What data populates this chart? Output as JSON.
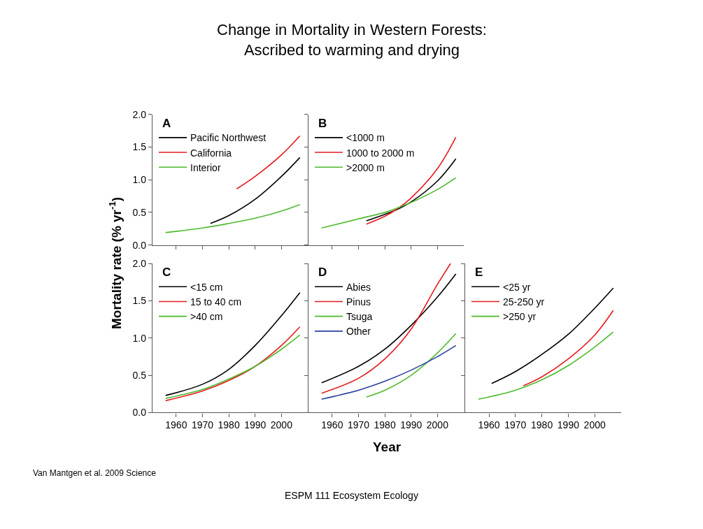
{
  "chart_data": [
    {
      "type": "other",
      "title": "Change in Mortality in Western Forests:\nAscribed to warming and drying",
      "ylabel": "Mortality rate (% yr$^{-1}$)",
      "xlabel": "Year",
      "annotations": [
        "Van Mantgen et al. 2009 Science",
        "ESPM 111 Ecosystem Ecology"
      ]
    },
    {
      "type": "line",
      "title": "A",
      "xlim": [
        1951,
        2010
      ],
      "ylim": [
        0,
        2
      ],
      "xticks": [
        {
          "value": 1960,
          "label": null
        },
        {
          "value": 1970,
          "label": null
        },
        {
          "value": 1980,
          "label": null
        },
        {
          "value": 1990,
          "label": null
        },
        {
          "value": 2000,
          "label": null
        }
      ],
      "yticks": [
        {
          "value": 0,
          "label": "0.0"
        },
        {
          "value": 0.5,
          "label": "0.5"
        },
        {
          "value": 1,
          "label": "1.0"
        },
        {
          "value": 1.5,
          "label": "1.5"
        },
        {
          "value": 2,
          "label": "2.0"
        }
      ],
      "tick_labels": "y",
      "legend": "top left",
      "series": [
        {
          "name": "Pacific Northwest",
          "color": "#000000",
          "x": [
            1973,
            1980,
            1990,
            2000,
            2007
          ],
          "values": [
            0.33,
            0.45,
            0.7,
            1.05,
            1.34
          ]
        },
        {
          "name": "California",
          "color": "#e41a1c",
          "x": [
            1983,
            1990,
            2000,
            2007
          ],
          "values": [
            0.86,
            1.05,
            1.38,
            1.67
          ]
        },
        {
          "name": "Interior",
          "color": "#4dbb2d",
          "x": [
            1956,
            1970,
            1980,
            1990,
            2000,
            2007
          ],
          "values": [
            0.19,
            0.26,
            0.33,
            0.41,
            0.52,
            0.62
          ]
        }
      ]
    },
    {
      "type": "line",
      "title": "B",
      "xlim": [
        1951,
        2010
      ],
      "ylim": [
        0,
        2
      ],
      "xticks": [
        {
          "value": 1960,
          "label": null
        },
        {
          "value": 1970,
          "label": null
        },
        {
          "value": 1980,
          "label": null
        },
        {
          "value": 1990,
          "label": null
        },
        {
          "value": 2000,
          "label": null
        }
      ],
      "yticks": [
        {
          "value": 0,
          "label": null
        },
        {
          "value": 0.5,
          "label": null
        },
        {
          "value": 1,
          "label": null
        },
        {
          "value": 1.5,
          "label": null
        },
        {
          "value": 2,
          "label": null
        }
      ],
      "tick_labels": false,
      "legend": "top left",
      "series": [
        {
          "name": "<1000 m",
          "color": "#000000",
          "x": [
            1973,
            1980,
            1985,
            1990,
            2000,
            2007
          ],
          "values": [
            0.37,
            0.47,
            0.55,
            0.66,
            0.98,
            1.32
          ]
        },
        {
          "name": "1000 to 2000 m",
          "color": "#e41a1c",
          "x": [
            1973,
            1980,
            1985,
            1990,
            2000,
            2007
          ],
          "values": [
            0.32,
            0.44,
            0.56,
            0.72,
            1.17,
            1.65
          ]
        },
        {
          "name": ">2000 m",
          "color": "#4dbb2d",
          "x": [
            1956,
            1970,
            1980,
            1985,
            1990,
            2000,
            2007
          ],
          "values": [
            0.26,
            0.4,
            0.5,
            0.57,
            0.65,
            0.85,
            1.03
          ]
        }
      ]
    },
    {
      "type": "line",
      "title": "C",
      "xlim": [
        1951,
        2010
      ],
      "ylim": [
        0,
        2
      ],
      "xticks": [
        1960,
        1970,
        1980,
        1990,
        2000
      ],
      "yticks": [
        {
          "value": 0,
          "label": "0.0"
        },
        {
          "value": 0.5,
          "label": "0.5"
        },
        {
          "value": 1,
          "label": "1.0"
        },
        {
          "value": 1.5,
          "label": "1.5"
        },
        {
          "value": 2,
          "label": "2.0"
        }
      ],
      "legend": "top left",
      "series": [
        {
          "name": "<15 cm",
          "color": "#000000",
          "x": [
            1956,
            1970,
            1980,
            1990,
            2000,
            2007
          ],
          "values": [
            0.23,
            0.38,
            0.58,
            0.9,
            1.3,
            1.61
          ]
        },
        {
          "name": "15 to 40 cm",
          "color": "#e41a1c",
          "x": [
            1956,
            1970,
            1980,
            1990,
            2000,
            2007
          ],
          "values": [
            0.16,
            0.29,
            0.43,
            0.62,
            0.9,
            1.15
          ]
        },
        {
          "name": ">40 cm",
          "color": "#4dbb2d",
          "x": [
            1956,
            1970,
            1980,
            1990,
            2000,
            2007
          ],
          "values": [
            0.19,
            0.31,
            0.45,
            0.62,
            0.85,
            1.04
          ]
        }
      ]
    },
    {
      "type": "line",
      "title": "D",
      "xlim": [
        1951,
        2010
      ],
      "ylim": [
        0,
        2
      ],
      "xticks": [
        1960,
        1970,
        1980,
        1990,
        2000
      ],
      "yticks": [
        {
          "value": 0,
          "label": null
        },
        {
          "value": 0.5,
          "label": null
        },
        {
          "value": 1,
          "label": null
        },
        {
          "value": 1.5,
          "label": null
        },
        {
          "value": 2,
          "label": null
        }
      ],
      "tick_labels": "x",
      "legend": "top left",
      "series": [
        {
          "name": "Abies",
          "color": "#000000",
          "x": [
            1956,
            1970,
            1980,
            1990,
            2000,
            2007
          ],
          "values": [
            0.4,
            0.62,
            0.85,
            1.17,
            1.55,
            1.86
          ]
        },
        {
          "name": "Pinus",
          "color": "#e41a1c",
          "x": [
            1956,
            1970,
            1980,
            1990,
            2000,
            2005
          ],
          "values": [
            0.26,
            0.46,
            0.72,
            1.12,
            1.72,
            2.0
          ]
        },
        {
          "name": "Tsuga",
          "color": "#4dbb2d",
          "x": [
            1973,
            1980,
            1990,
            2000,
            2007
          ],
          "values": [
            0.21,
            0.3,
            0.5,
            0.8,
            1.06
          ]
        },
        {
          "name": "Other",
          "color": "#2b3fa0",
          "x": [
            1956,
            1970,
            1980,
            1990,
            2000,
            2007
          ],
          "values": [
            0.18,
            0.3,
            0.42,
            0.57,
            0.75,
            0.9
          ]
        }
      ]
    },
    {
      "type": "line",
      "title": "E",
      "xlim": [
        1951,
        2010
      ],
      "ylim": [
        0,
        2
      ],
      "xticks": [
        1960,
        1970,
        1980,
        1990,
        2000
      ],
      "yticks": [
        {
          "value": 0,
          "label": null
        },
        {
          "value": 0.5,
          "label": null
        },
        {
          "value": 1,
          "label": null
        },
        {
          "value": 1.5,
          "label": null
        },
        {
          "value": 2,
          "label": null
        }
      ],
      "tick_labels": "x",
      "legend": "top left",
      "series": [
        {
          "name": "<25 yr",
          "color": "#000000",
          "x": [
            1961,
            1970,
            1980,
            1990,
            2000,
            2007
          ],
          "values": [
            0.39,
            0.55,
            0.78,
            1.05,
            1.4,
            1.67
          ]
        },
        {
          "name": "25-250 yr",
          "color": "#e41a1c",
          "x": [
            1973,
            1980,
            1990,
            2000,
            2007
          ],
          "values": [
            0.36,
            0.48,
            0.72,
            1.04,
            1.37
          ]
        },
        {
          "name": ">250 yr",
          "color": "#4dbb2d",
          "x": [
            1956,
            1970,
            1980,
            1990,
            2000,
            2007
          ],
          "values": [
            0.18,
            0.3,
            0.44,
            0.63,
            0.88,
            1.08
          ]
        }
      ]
    }
  ]
}
